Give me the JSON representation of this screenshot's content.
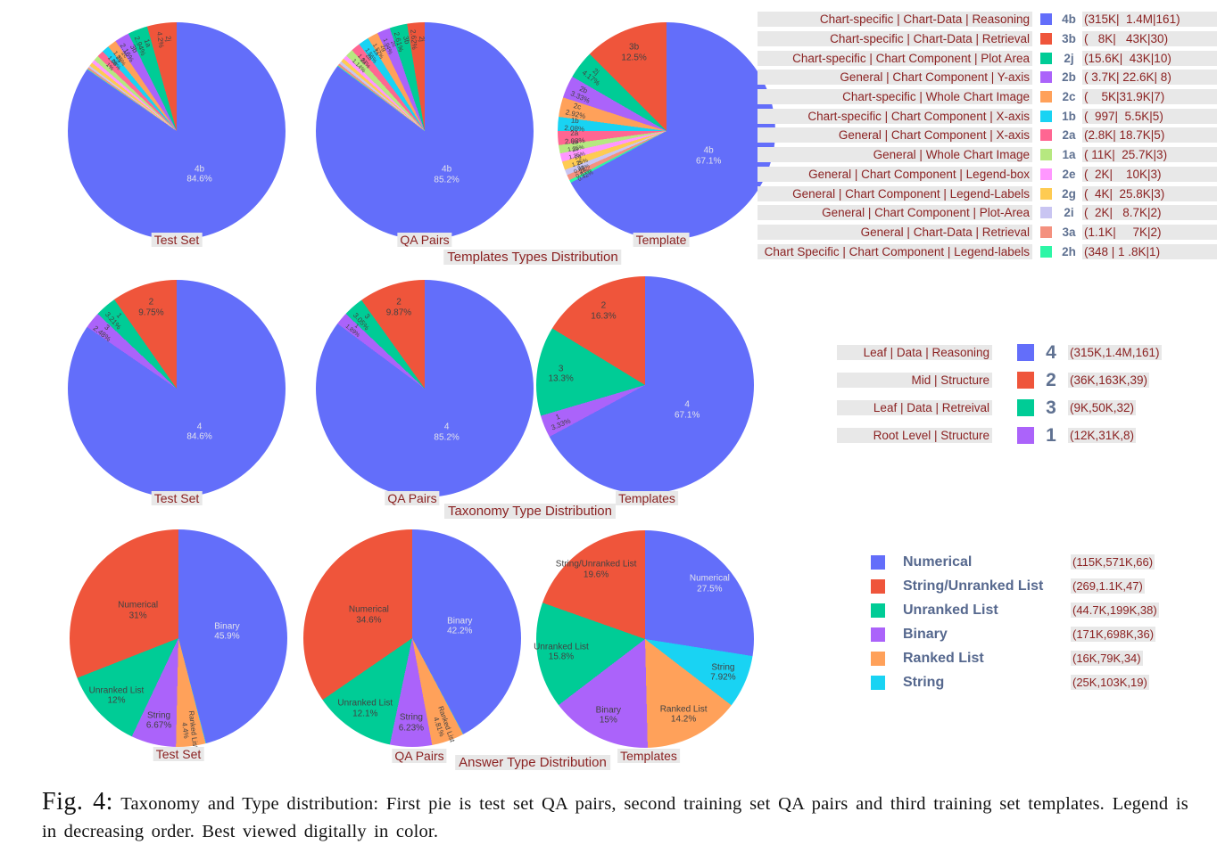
{
  "groups": [
    {
      "title": "Templates Types Distribution"
    },
    {
      "title": "Taxonomy Type Distribution"
    },
    {
      "title": "Answer Type Distribution"
    }
  ],
  "colors": {
    "palette": [
      "#636EFA",
      "#EF553B",
      "#00CC96",
      "#AB63FA",
      "#FFA15A",
      "#19D3F3",
      "#FF6692",
      "#B6E880",
      "#FF97FF",
      "#FECB52",
      "#C9C5F2",
      "#F4917F",
      "#2DF6A6"
    ],
    "legend_text": "#8b2222",
    "code_text": "#5f7191",
    "highlight_bg": "#e8e8e8",
    "label_dark": "#424242",
    "label_light": "#e2e2ec"
  },
  "chart_data": [
    {
      "type": "pie",
      "group": "Templates Types Distribution",
      "title": "Test Set",
      "label_min": 0.95,
      "slices": [
        {
          "name": "4b",
          "pct": 84.6,
          "pct_label": "84.6%"
        },
        {
          "name": "2j",
          "pct": 4.2,
          "pct_label": "4.2%"
        },
        {
          "name": "1a",
          "pct": 2.94,
          "pct_label": "2.94%"
        },
        {
          "name": "3b",
          "pct": 2.16,
          "pct_label": "2.16%"
        },
        {
          "name": "2c",
          "pct": 1.35,
          "pct_label": "1.35%"
        },
        {
          "name": "2g",
          "pct": 1.08,
          "pct_label": "1.08%"
        },
        {
          "name": "2b",
          "pct": 1.0,
          "pct_label": "1%"
        },
        {
          "name": "2a",
          "pct": 0.75,
          "pct_label": "0.75%"
        },
        {
          "name": "2e",
          "pct": 0.54,
          "pct_label": "0.54%"
        },
        {
          "name": "2i",
          "pct": 0.54,
          "pct_label": "0.54%"
        },
        {
          "name": "3a",
          "pct": 0.3,
          "pct_label": "0.3%"
        },
        {
          "name": "1b",
          "pct": 0.27,
          "pct_label": "0.27%"
        },
        {
          "name": "2h",
          "pct": 0.09,
          "pct_label": "0.09%"
        }
      ]
    },
    {
      "type": "pie",
      "group": "Templates Types Distribution",
      "title": "QA Pairs",
      "label_min": 1.0,
      "slices": [
        {
          "name": "4b",
          "pct": 85.2,
          "pct_label": "85.2%"
        },
        {
          "name": "2j",
          "pct": 2.62,
          "pct_label": "2.62%"
        },
        {
          "name": "3b",
          "pct": 2.61,
          "pct_label": "2.61%"
        },
        {
          "name": "2c",
          "pct": 1.94,
          "pct_label": "1.94%"
        },
        {
          "name": "2g",
          "pct": 1.57,
          "pct_label": "1.57%"
        },
        {
          "name": "1a",
          "pct": 1.56,
          "pct_label": "1.56%"
        },
        {
          "name": "2b",
          "pct": 1.37,
          "pct_label": "1.37%"
        },
        {
          "name": "2a",
          "pct": 1.14,
          "pct_label": "1.14%"
        },
        {
          "name": "2e",
          "pct": 0.61,
          "pct_label": "0.61%"
        },
        {
          "name": "2i",
          "pct": 0.53,
          "pct_label": "0.53%"
        },
        {
          "name": "3a",
          "pct": 0.43,
          "pct_label": "0.43%"
        },
        {
          "name": "1b",
          "pct": 0.33,
          "pct_label": "0.33%"
        },
        {
          "name": "2h",
          "pct": 0.11,
          "pct_label": "0.11%"
        }
      ]
    },
    {
      "type": "pie",
      "group": "Templates Types Distribution",
      "title": "Template",
      "label_min": 0.3,
      "slices": [
        {
          "name": "4b",
          "pct": 67.1,
          "pct_label": "67.1%"
        },
        {
          "name": "3b",
          "pct": 12.5,
          "pct_label": "12.5%"
        },
        {
          "name": "2j",
          "pct": 4.17,
          "pct_label": "4.17%"
        },
        {
          "name": "2b",
          "pct": 3.33,
          "pct_label": "3.33%"
        },
        {
          "name": "2c",
          "pct": 2.92,
          "pct_label": "2.92%"
        },
        {
          "name": "1b",
          "pct": 2.08,
          "pct_label": "2.08%"
        },
        {
          "name": "2a",
          "pct": 2.08,
          "pct_label": "2.08%"
        },
        {
          "name": "1a",
          "pct": 1.25,
          "pct_label": "1.25%"
        },
        {
          "name": "2e",
          "pct": 1.25,
          "pct_label": "1.25%"
        },
        {
          "name": "2g",
          "pct": 1.25,
          "pct_label": "1.25%"
        },
        {
          "name": "2i",
          "pct": 0.83,
          "pct_label": "0.83%"
        },
        {
          "name": "3a",
          "pct": 0.83,
          "pct_label": "0.83%"
        },
        {
          "name": "2h",
          "pct": 0.42,
          "pct_label": "0.42%"
        }
      ]
    },
    {
      "type": "pie",
      "group": "Taxonomy Type Distribution",
      "title": "Test Set",
      "label_min": 1.0,
      "slices": [
        {
          "name": "4",
          "pct": 84.6,
          "pct_label": "84.6%"
        },
        {
          "name": "2",
          "pct": 9.75,
          "pct_label": "9.75%"
        },
        {
          "name": "1",
          "pct": 3.21,
          "pct_label": "3.21%"
        },
        {
          "name": "3",
          "pct": 2.48,
          "pct_label": "2.48%"
        }
      ]
    },
    {
      "type": "pie",
      "group": "Taxonomy Type Distribution",
      "title": "QA Pairs",
      "label_min": 1.0,
      "slices": [
        {
          "name": "4",
          "pct": 85.2,
          "pct_label": "85.2%"
        },
        {
          "name": "2",
          "pct": 9.87,
          "pct_label": "9.87%"
        },
        {
          "name": "3",
          "pct": 3.05,
          "pct_label": "3.05%"
        },
        {
          "name": "1",
          "pct": 1.89,
          "pct_label": "1.89%"
        }
      ]
    },
    {
      "type": "pie",
      "group": "Taxonomy Type Distribution",
      "title": "Templates",
      "label_min": 1.0,
      "slices": [
        {
          "name": "4",
          "pct": 67.1,
          "pct_label": "67.1%"
        },
        {
          "name": "2",
          "pct": 16.3,
          "pct_label": "16.3%"
        },
        {
          "name": "3",
          "pct": 13.3,
          "pct_label": "13.3%"
        },
        {
          "name": "1",
          "pct": 3.33,
          "pct_label": "3.33%"
        }
      ]
    },
    {
      "type": "pie",
      "group": "Answer Type Distribution",
      "title": "Test Set",
      "label_min": 1.0,
      "slices": [
        {
          "name": "Binary",
          "pct": 45.9,
          "pct_label": "45.9%"
        },
        {
          "name": "Numerical",
          "pct": 31.0,
          "pct_label": "31%"
        },
        {
          "name": "Unranked List",
          "pct": 12.0,
          "pct_label": "12%"
        },
        {
          "name": "String",
          "pct": 6.67,
          "pct_label": "6.67%"
        },
        {
          "name": "Ranked List",
          "pct": 4.4,
          "pct_label": "4.4%"
        },
        {
          "name": "String/Unranked List",
          "pct": 0.07,
          "pct_label": "0.07%"
        }
      ]
    },
    {
      "type": "pie",
      "group": "Answer Type Distribution",
      "title": "QA Pairs",
      "label_min": 1.0,
      "slices": [
        {
          "name": "Binary",
          "pct": 42.2,
          "pct_label": "42.2%"
        },
        {
          "name": "Numerical",
          "pct": 34.6,
          "pct_label": "34.6%"
        },
        {
          "name": "Unranked List",
          "pct": 12.1,
          "pct_label": "12.1%"
        },
        {
          "name": "String",
          "pct": 6.23,
          "pct_label": "6.23%"
        },
        {
          "name": "Ranked List",
          "pct": 4.81,
          "pct_label": "4.81%"
        },
        {
          "name": "String/Unranked List",
          "pct": 0.06,
          "pct_label": "0.06%"
        }
      ]
    },
    {
      "type": "pie",
      "group": "Answer Type Distribution",
      "title": "Templates",
      "label_min": 1.0,
      "slices": [
        {
          "name": "Numerical",
          "pct": 27.5,
          "pct_label": "27.5%"
        },
        {
          "name": "String/Unranked List",
          "pct": 19.6,
          "pct_label": "19.6%"
        },
        {
          "name": "Unranked List",
          "pct": 15.8,
          "pct_label": "15.8%"
        },
        {
          "name": "Binary",
          "pct": 15.0,
          "pct_label": "15%"
        },
        {
          "name": "Ranked List",
          "pct": 14.2,
          "pct_label": "14.2%"
        },
        {
          "name": "String",
          "pct": 7.92,
          "pct_label": "7.92%"
        }
      ]
    }
  ],
  "legends": [
    {
      "items": [
        {
          "label": "Chart-specific | Chart-Data | Reasoning",
          "code": "4b",
          "counts": "(315K|  1.4M|161)"
        },
        {
          "label": "Chart-specific | Chart-Data | Retrieval",
          "code": "3b",
          "counts": "(   8K|   43K|30)"
        },
        {
          "label": "Chart-specific | Chart Component | Plot Area",
          "code": "2j",
          "counts": "(15.6K|  43K|10)"
        },
        {
          "label": "General | Chart Component | Y-axis",
          "code": "2b",
          "counts": "( 3.7K| 22.6K| 8)"
        },
        {
          "label": "Chart-specific | Whole Chart Image",
          "code": "2c",
          "counts": "(    5K|31.9K|7)"
        },
        {
          "label": "Chart-specific | Chart Component | X-axis",
          "code": "1b",
          "counts": "(  997|  5.5K|5)"
        },
        {
          "label": "General | Chart Component | X-axis",
          "code": "2a",
          "counts": "(2.8K| 18.7K|5)"
        },
        {
          "label": "General | Whole Chart Image",
          "code": "1a",
          "counts": "( 11K|  25.7K|3)"
        },
        {
          "label": "General | Chart Component | Legend-box",
          "code": "2e",
          "counts": "(  2K|    10K|3)"
        },
        {
          "label": "General | Chart Component | Legend-Labels",
          "code": "2g",
          "counts": "(  4K|  25.8K|3)"
        },
        {
          "label": "General | Chart Component | Plot-Area",
          "code": "2i",
          "counts": "(  2K|   8.7K|2)"
        },
        {
          "label": "General | Chart-Data | Retrieval",
          "code": "3a",
          "counts": "(1.1K|     7K|2)"
        },
        {
          "label": "Chart Specific | Chart Component | Legend-labels",
          "code": "2h",
          "counts": "(348 | 1 .8K|1)"
        }
      ]
    },
    {
      "items": [
        {
          "label": "Leaf | Data | Reasoning",
          "code": "4",
          "counts": "(315K,1.4M,161)"
        },
        {
          "label": "Mid | Structure",
          "code": "2",
          "counts": "(36K,163K,39)"
        },
        {
          "label": "Leaf | Data | Retreival",
          "code": "3",
          "counts": "(9K,50K,32)"
        },
        {
          "label": "Root Level | Structure",
          "code": "1",
          "counts": "(12K,31K,8)"
        }
      ]
    },
    {
      "items": [
        {
          "label": "Numerical",
          "counts": "(115K,571K,66)"
        },
        {
          "label": "String/Unranked List",
          "counts": "(269,1.1K,47)"
        },
        {
          "label": "Unranked List",
          "counts": "(44.7K,199K,38)"
        },
        {
          "label": "Binary",
          "counts": "(171K,698K,36)"
        },
        {
          "label": "Ranked List",
          "counts": "(16K,79K,34)"
        },
        {
          "label": "String",
          "counts": "(25K,103K,19)"
        }
      ]
    }
  ],
  "caption": {
    "prefix": "Fig. 4:",
    "text": "Taxonomy and Type distribution: First pie is test set QA pairs, second training set QA pairs and third training set templates. Legend is in decreasing order. Best viewed digitally in color."
  }
}
